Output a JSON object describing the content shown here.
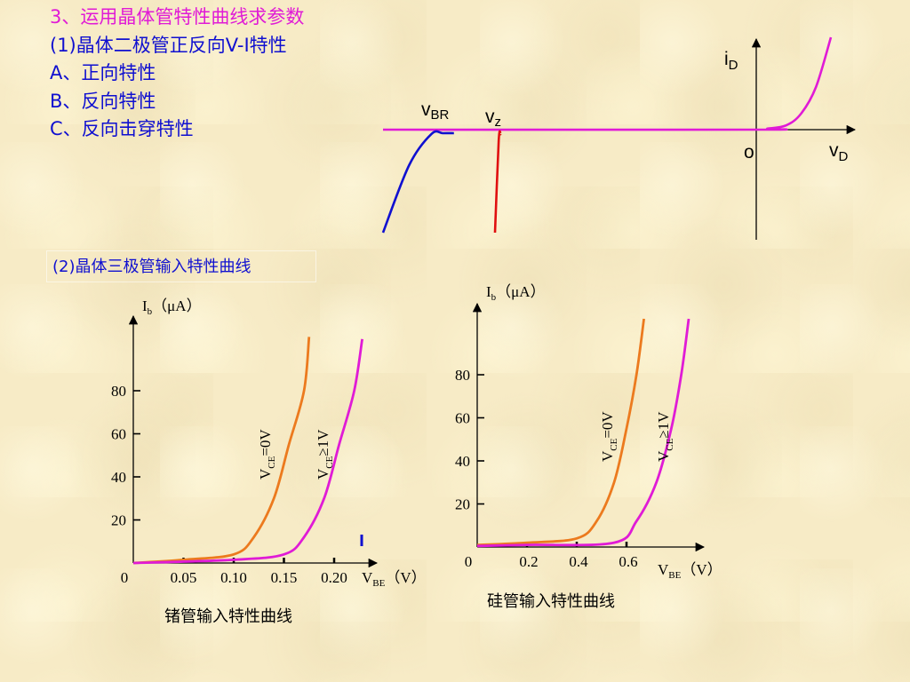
{
  "text": {
    "line1": "3、运用晶体管特性曲线求参数",
    "line2": "(1)晶体二极管正反向V-I特性",
    "line3": "A、正向特性",
    "line4": "B、反向特性",
    "line5": "C、反向击穿特性",
    "section2_title": "(2)晶体三极管输入特性曲线",
    "ge_caption": "锗管输入特性曲线",
    "si_caption": "硅管输入特性曲线"
  },
  "colors": {
    "magenta": "#e01bd6",
    "blue": "#1010d0",
    "red": "#e01010",
    "orange": "#ec7a1e",
    "axis": "#000000"
  },
  "chart_data": [
    {
      "type": "line",
      "axis_labels": {
        "y_main": "i",
        "y_sub": "D",
        "x_main": "v",
        "x_sub": "D",
        "origin": "o",
        "vbr_main": "v",
        "vbr_sub": "BR",
        "vz_main": "v",
        "vz_sub": "z"
      },
      "series": [
        {
          "color": "magenta",
          "x": [
            -1.0,
            0.0,
            0.03,
            0.08,
            0.12,
            0.16,
            0.2
          ],
          "y": [
            0,
            0,
            0.03,
            0.12,
            0.45,
            1.2,
            2.6
          ]
        },
        {
          "color": "blue",
          "x": [
            -1.0,
            -0.93,
            -0.87,
            -0.84,
            -0.81
          ],
          "y": [
            -2.9,
            -1.0,
            -0.12,
            0,
            0
          ]
        },
        {
          "color": "red",
          "x": [
            -0.7,
            -0.69,
            -0.685
          ],
          "y": [
            -2.9,
            -0.3,
            0
          ]
        }
      ],
      "grid": false
    },
    {
      "type": "line",
      "y_axis": {
        "main": "I",
        "sub": "b",
        "suffix": "（μA）"
      },
      "x_axis": {
        "main": "V",
        "sub": "BE",
        "suffix": "（V）"
      },
      "xticks": [
        "0",
        "0.05",
        "0.10",
        "0.15",
        "0.20"
      ],
      "yticks": [
        "20",
        "40",
        "60",
        "80"
      ],
      "series": [
        {
          "label_main": "V",
          "label_sub": "CE",
          "label_suffix": "=0V",
          "color": "orange",
          "x": [
            0,
            0.05,
            0.1,
            0.12,
            0.14,
            0.155,
            0.17,
            0.175
          ],
          "y": [
            0,
            1.5,
            4,
            12,
            30,
            55,
            80,
            105
          ]
        },
        {
          "label_main": "V",
          "label_sub": "CE",
          "label_suffix": "≥1V",
          "color": "magenta",
          "x": [
            0,
            0.1,
            0.15,
            0.17,
            0.19,
            0.205,
            0.22,
            0.228
          ],
          "y": [
            0,
            1.5,
            4,
            12,
            30,
            55,
            80,
            104
          ]
        }
      ],
      "grid": false
    },
    {
      "type": "line",
      "y_axis": {
        "main": "I",
        "sub": "b",
        "suffix": "（μA）"
      },
      "x_axis": {
        "main": "V",
        "sub": "BE",
        "suffix": "（V）"
      },
      "xticks": [
        "0",
        "0.2",
        "0.4",
        "0.6"
      ],
      "yticks": [
        "20",
        "40",
        "60",
        "80"
      ],
      "series": [
        {
          "label_main": "V",
          "label_sub": "CE",
          "label_suffix": "=0V",
          "color": "orange",
          "x": [
            0,
            0.2,
            0.4,
            0.48,
            0.55,
            0.6,
            0.64,
            0.67
          ],
          "y": [
            1,
            2,
            4,
            12,
            30,
            55,
            80,
            106
          ]
        },
        {
          "label_main": "V",
          "label_sub": "CE",
          "label_suffix": "≥1V",
          "color": "magenta",
          "x": [
            0,
            0.2,
            0.55,
            0.64,
            0.72,
            0.78,
            0.82,
            0.85
          ],
          "y": [
            0.5,
            1,
            2,
            12,
            30,
            55,
            80,
            106
          ]
        }
      ],
      "grid": false
    }
  ]
}
